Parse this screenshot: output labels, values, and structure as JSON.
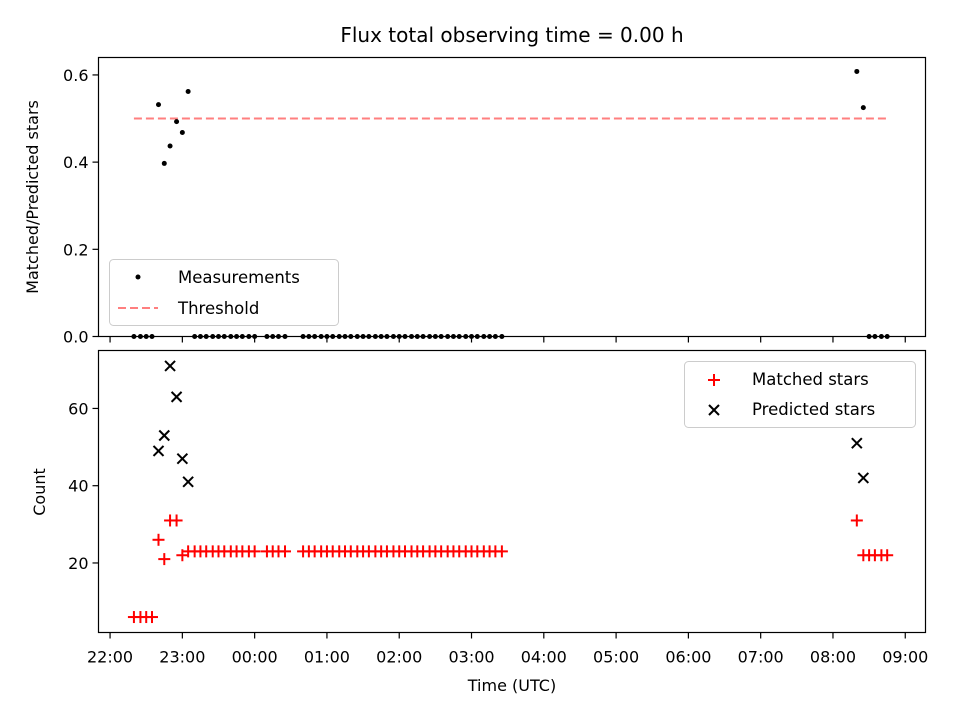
{
  "chart_data": [
    {
      "type": "scatter",
      "title": "Flux total observing time = 0.00 h",
      "ylabel": "Matched/Predicted stars",
      "xlabel": "",
      "ylim": [
        0,
        0.64
      ],
      "yticks": [
        "0.0",
        "0.2",
        "0.4",
        "0.6"
      ],
      "ytick_values": [
        0,
        0.2,
        0.4,
        0.6
      ],
      "legend_position": "lower-left",
      "series": [
        {
          "name": "Measurements",
          "marker": "dot",
          "color": "#000000",
          "points": [
            [
              22.33,
              0
            ],
            [
              22.42,
              0
            ],
            [
              22.5,
              0
            ],
            [
              22.58,
              0
            ],
            [
              22.67,
              0.532
            ],
            [
              22.75,
              0.397
            ],
            [
              22.83,
              0.437
            ],
            [
              22.92,
              0.493
            ],
            [
              23.0,
              0.468
            ],
            [
              23.08,
              0.562
            ],
            [
              23.17,
              0
            ],
            [
              23.25,
              0
            ],
            [
              23.33,
              0
            ],
            [
              23.42,
              0
            ],
            [
              23.5,
              0
            ],
            [
              23.58,
              0
            ],
            [
              23.67,
              0
            ],
            [
              23.75,
              0
            ],
            [
              23.83,
              0
            ],
            [
              23.92,
              0
            ],
            [
              24.0,
              0
            ],
            [
              24.17,
              0
            ],
            [
              24.25,
              0
            ],
            [
              24.33,
              0
            ],
            [
              24.42,
              0
            ],
            [
              24.67,
              0
            ],
            [
              24.75,
              0
            ],
            [
              24.83,
              0
            ],
            [
              24.92,
              0
            ],
            [
              25.0,
              0
            ],
            [
              25.08,
              0
            ],
            [
              25.17,
              0
            ],
            [
              25.25,
              0
            ],
            [
              25.33,
              0
            ],
            [
              25.42,
              0
            ],
            [
              25.5,
              0
            ],
            [
              25.58,
              0
            ],
            [
              25.67,
              0
            ],
            [
              25.75,
              0
            ],
            [
              25.83,
              0
            ],
            [
              25.92,
              0
            ],
            [
              26.0,
              0
            ],
            [
              26.08,
              0
            ],
            [
              26.17,
              0
            ],
            [
              26.25,
              0
            ],
            [
              26.33,
              0
            ],
            [
              26.42,
              0
            ],
            [
              26.5,
              0
            ],
            [
              26.58,
              0
            ],
            [
              26.67,
              0
            ],
            [
              26.75,
              0
            ],
            [
              26.83,
              0
            ],
            [
              26.92,
              0
            ],
            [
              27.0,
              0
            ],
            [
              27.08,
              0
            ],
            [
              27.17,
              0
            ],
            [
              27.25,
              0
            ],
            [
              27.33,
              0
            ],
            [
              27.42,
              0
            ],
            [
              32.33,
              0.608
            ],
            [
              32.42,
              0.525
            ],
            [
              32.5,
              0
            ],
            [
              32.58,
              0
            ],
            [
              32.67,
              0
            ],
            [
              32.75,
              0
            ]
          ]
        },
        {
          "name": "Threshold",
          "marker": "dashed-line",
          "color": "#ff7f7f",
          "x": [
            22.33,
            32.75
          ],
          "y": [
            0.5,
            0.5
          ]
        }
      ]
    },
    {
      "type": "scatter",
      "title": "",
      "ylabel": "Count",
      "xlabel": "Time (UTC)",
      "ylim": [
        2,
        75
      ],
      "yticks": [
        "20",
        "40",
        "60"
      ],
      "ytick_values": [
        20,
        40,
        60
      ],
      "xlim": [
        21.84,
        33.28
      ],
      "xticks": [
        "22:00",
        "23:00",
        "00:00",
        "01:00",
        "02:00",
        "03:00",
        "04:00",
        "05:00",
        "06:00",
        "07:00",
        "08:00",
        "09:00"
      ],
      "xtick_values": [
        22,
        23,
        24,
        25,
        26,
        27,
        28,
        29,
        30,
        31,
        32,
        33
      ],
      "legend_position": "top-right",
      "series": [
        {
          "name": "Matched stars",
          "marker": "plus",
          "color": "#ff0000",
          "points": [
            [
              22.33,
              6
            ],
            [
              22.42,
              6
            ],
            [
              22.5,
              6
            ],
            [
              22.58,
              6
            ],
            [
              22.67,
              26
            ],
            [
              22.75,
              21
            ],
            [
              22.83,
              31
            ],
            [
              22.92,
              31
            ],
            [
              23.0,
              22
            ],
            [
              23.08,
              23
            ],
            [
              23.17,
              23
            ],
            [
              23.25,
              23
            ],
            [
              23.33,
              23
            ],
            [
              23.42,
              23
            ],
            [
              23.5,
              23
            ],
            [
              23.58,
              23
            ],
            [
              23.67,
              23
            ],
            [
              23.75,
              23
            ],
            [
              23.83,
              23
            ],
            [
              23.92,
              23
            ],
            [
              24.0,
              23
            ],
            [
              24.17,
              23
            ],
            [
              24.25,
              23
            ],
            [
              24.33,
              23
            ],
            [
              24.42,
              23
            ],
            [
              24.67,
              23
            ],
            [
              24.75,
              23
            ],
            [
              24.83,
              23
            ],
            [
              24.92,
              23
            ],
            [
              25.0,
              23
            ],
            [
              25.08,
              23
            ],
            [
              25.17,
              23
            ],
            [
              25.25,
              23
            ],
            [
              25.33,
              23
            ],
            [
              25.42,
              23
            ],
            [
              25.5,
              23
            ],
            [
              25.58,
              23
            ],
            [
              25.67,
              23
            ],
            [
              25.75,
              23
            ],
            [
              25.83,
              23
            ],
            [
              25.92,
              23
            ],
            [
              26.0,
              23
            ],
            [
              26.08,
              23
            ],
            [
              26.17,
              23
            ],
            [
              26.25,
              23
            ],
            [
              26.33,
              23
            ],
            [
              26.42,
              23
            ],
            [
              26.5,
              23
            ],
            [
              26.58,
              23
            ],
            [
              26.67,
              23
            ],
            [
              26.75,
              23
            ],
            [
              26.83,
              23
            ],
            [
              26.92,
              23
            ],
            [
              27.0,
              23
            ],
            [
              27.08,
              23
            ],
            [
              27.17,
              23
            ],
            [
              27.25,
              23
            ],
            [
              27.33,
              23
            ],
            [
              27.42,
              23
            ],
            [
              32.33,
              31
            ],
            [
              32.42,
              22
            ],
            [
              32.5,
              22
            ],
            [
              32.58,
              22
            ],
            [
              32.67,
              22
            ],
            [
              32.75,
              22
            ]
          ]
        },
        {
          "name": "Predicted stars",
          "marker": "x",
          "color": "#000000",
          "points": [
            [
              22.67,
              49
            ],
            [
              22.75,
              53
            ],
            [
              22.83,
              71
            ],
            [
              22.92,
              63
            ],
            [
              23.0,
              47
            ],
            [
              23.08,
              41
            ],
            [
              32.33,
              51
            ],
            [
              32.42,
              42
            ]
          ]
        }
      ]
    }
  ]
}
